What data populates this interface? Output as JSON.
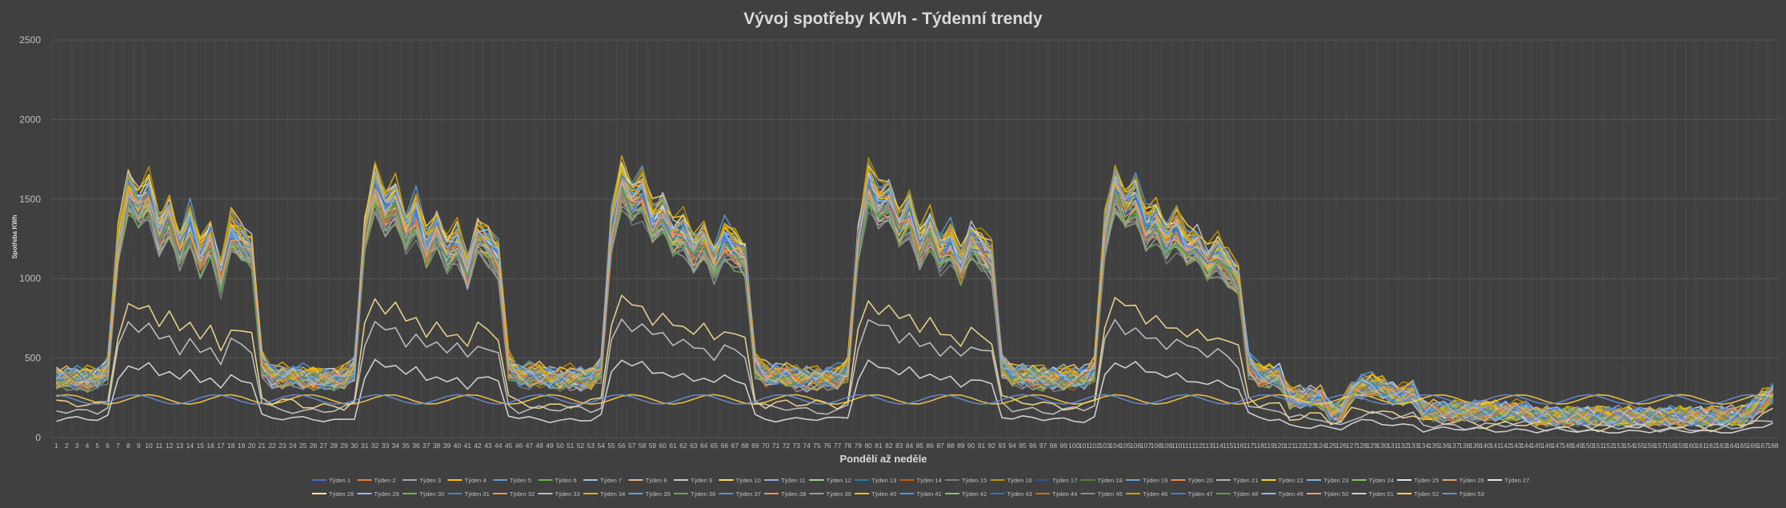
{
  "chart_data": {
    "type": "line",
    "title": "Vývoj spotřeby KWh - Týdenní trendy",
    "xlabel": "Pondělí až neděle",
    "ylabel": "Spotřeba KWh",
    "ylim": [
      0,
      2500
    ],
    "yticks": [
      0,
      500,
      1000,
      1500,
      2000,
      2500
    ],
    "grid": "horizontal and vertical",
    "legend_position": "bottom",
    "x": [
      1,
      2,
      3,
      4,
      5,
      6,
      7,
      8,
      9,
      10,
      11,
      12,
      13,
      14,
      15,
      16,
      17,
      18,
      19,
      20,
      21,
      22,
      23,
      24,
      25,
      26,
      27,
      28,
      29,
      30,
      31,
      32,
      33,
      34,
      35,
      36,
      37,
      38,
      39,
      40,
      41,
      42,
      43,
      44,
      45,
      46,
      47,
      48,
      49,
      50,
      51,
      52,
      53,
      54,
      55,
      56,
      57,
      58,
      59,
      60,
      61,
      62,
      63,
      64,
      65,
      66,
      67,
      68,
      69,
      70,
      71,
      72,
      73,
      74,
      75,
      76,
      77,
      78,
      79,
      80,
      81,
      82,
      83,
      84,
      85,
      86,
      87,
      88,
      89,
      90,
      91,
      92,
      93,
      94,
      95,
      96,
      97,
      98,
      99,
      100,
      101,
      102,
      103,
      104,
      105,
      106,
      107,
      108,
      109,
      110,
      111,
      112,
      113,
      114,
      115,
      116,
      117,
      118,
      119,
      120,
      121,
      122,
      123,
      124,
      125,
      126,
      127,
      128,
      129,
      130,
      131,
      132,
      133,
      134,
      135,
      136,
      137,
      138,
      139,
      140,
      141,
      142,
      143,
      144,
      145,
      146,
      147,
      148,
      149,
      150,
      151,
      152,
      153,
      154,
      155,
      156,
      157,
      158,
      159,
      160,
      161,
      162,
      163,
      164,
      165,
      166,
      167,
      168
    ],
    "series": [
      {
        "name": "Týden 1",
        "color": "#4472c4",
        "scale": 0.93,
        "level": 860
      },
      {
        "name": "Týden 2",
        "color": "#ed7d31",
        "scale": 0.96,
        "level": 880
      },
      {
        "name": "Týden 3",
        "color": "#a5a5a5",
        "scale": 0.9,
        "level": 850
      },
      {
        "name": "Týden 4",
        "color": "#ffc000",
        "scale": 0.98,
        "level": 870
      },
      {
        "name": "Týden 5",
        "color": "#5b9bd5",
        "scale": 1.0,
        "level": 890
      },
      {
        "name": "Týden 6",
        "color": "#70ad47",
        "scale": 0.95,
        "level": 860
      },
      {
        "name": "Týden 7",
        "color": "#9dc3e6",
        "scale": 0.97,
        "level": 875
      },
      {
        "name": "Týden 8",
        "color": "#f4b183",
        "scale": 0.94,
        "level": 865
      },
      {
        "name": "Týden 9",
        "color": "#c9c9c9",
        "scale": 0.99,
        "level": 880
      },
      {
        "name": "Týden 10",
        "color": "#ffd966",
        "scale": 1.0,
        "level": 885
      },
      {
        "name": "Týden 11",
        "color": "#8faadc",
        "scale": 0.92,
        "level": 850
      },
      {
        "name": "Týden 12",
        "color": "#a9d18e",
        "scale": 0.96,
        "level": 870
      },
      {
        "name": "Týden 13",
        "color": "#2e75b6",
        "scale": 0.95,
        "level": 860
      },
      {
        "name": "Týden 14",
        "color": "#c55a11",
        "scale": 0.93,
        "level": 855
      },
      {
        "name": "Týden 15",
        "color": "#7f7f7f",
        "scale": 0.9,
        "level": 845
      },
      {
        "name": "Týden 16",
        "color": "#bf9000",
        "scale": 1.0,
        "level": 890
      },
      {
        "name": "Týden 17",
        "color": "#2f5597",
        "scale": 0.97,
        "level": 870
      },
      {
        "name": "Týden 18",
        "color": "#548235",
        "scale": 0.94,
        "level": 860
      },
      {
        "name": "Týden 19",
        "color": "#6f9fd8",
        "scale": 0.98,
        "level": 875
      },
      {
        "name": "Týden 20",
        "color": "#f08c50",
        "scale": 0.95,
        "level": 865
      },
      {
        "name": "Týden 21",
        "color": "#b4b4b4",
        "scale": 0.92,
        "level": 855
      },
      {
        "name": "Týden 22",
        "color": "#ffcc33",
        "scale": 0.99,
        "level": 880
      },
      {
        "name": "Týden 23",
        "color": "#7fb2e5",
        "scale": 0.96,
        "level": 870
      },
      {
        "name": "Týden 24",
        "color": "#8cc063",
        "scale": 0.93,
        "level": 860
      },
      {
        "name": "Týden 25",
        "color": "#dbe5f1",
        "scale": 0.97,
        "level": 875
      },
      {
        "name": "Týden 26",
        "color": "#e2a36f",
        "scale": 0.94,
        "level": 860
      },
      {
        "name": "Týden 27",
        "color": "#e7e6e6",
        "scale": 0.42,
        "level": 600
      },
      {
        "name": "Týden 28",
        "color": "#ffe699",
        "scale": 0.6,
        "level": 760
      },
      {
        "name": "Týden 29",
        "color": "#9cb8e8",
        "scale": 0.95,
        "level": 865
      },
      {
        "name": "Týden 30",
        "color": "#78b05a",
        "scale": 0.9,
        "level": 850
      },
      {
        "name": "Týden 31",
        "color": "#4f81bd",
        "scale": 0.96,
        "level": 870
      },
      {
        "name": "Týden 32",
        "color": "#f79646",
        "scale": 0.97,
        "level": 875
      },
      {
        "name": "Týden 33",
        "color": "#bbbbbb",
        "scale": 0.93,
        "level": 860
      },
      {
        "name": "Týden 34",
        "color": "#e0b000",
        "scale": 0.99,
        "level": 885
      },
      {
        "name": "Týden 35",
        "color": "#64a0dc",
        "scale": 0.95,
        "level": 865
      },
      {
        "name": "Týden 36",
        "color": "#6aa84f",
        "scale": 0.94,
        "level": 860
      },
      {
        "name": "Týden 37",
        "color": "#5e8fd0",
        "scale": 0.98,
        "level": 880
      },
      {
        "name": "Týden 38",
        "color": "#e6955e",
        "scale": 0.92,
        "level": 855
      },
      {
        "name": "Týden 39",
        "color": "#9a9a9a",
        "scale": 0.9,
        "level": 850
      },
      {
        "name": "Týden 40",
        "color": "#f2c300",
        "scale": 0.97,
        "level": 870
      },
      {
        "name": "Týden 41",
        "color": "#5592d8",
        "scale": 0.96,
        "level": 870
      },
      {
        "name": "Týden 42",
        "color": "#86c06a",
        "scale": 0.93,
        "level": 860
      },
      {
        "name": "Týden 43",
        "color": "#3a6fb8",
        "scale": 0.95,
        "level": 865
      },
      {
        "name": "Týden 44",
        "color": "#d2691e",
        "scale": 0.94,
        "level": 860
      },
      {
        "name": "Týden 45",
        "color": "#8c8c8c",
        "scale": 0.91,
        "level": 850
      },
      {
        "name": "Týden 46",
        "color": "#c8a000",
        "scale": 0.98,
        "level": 880
      },
      {
        "name": "Týden 47",
        "color": "#4a7cc6",
        "scale": 0.96,
        "level": 870
      },
      {
        "name": "Týden 48",
        "color": "#62994a",
        "scale": 0.92,
        "level": 855
      },
      {
        "name": "Týden 49",
        "color": "#8fb8e8",
        "scale": 0.97,
        "level": 875
      },
      {
        "name": "Týden 50",
        "color": "#f0a070",
        "scale": 0.95,
        "level": 865
      },
      {
        "name": "Týden 51",
        "color": "#d0d0d0",
        "scale": 0.55,
        "level": 700
      },
      {
        "name": "Týden 52",
        "color": "#ffd24d",
        "scale": 0.12,
        "level": 260
      },
      {
        "name": "Týden 53",
        "color": "#6b8fd6",
        "scale": 0.14,
        "level": 270
      }
    ]
  }
}
